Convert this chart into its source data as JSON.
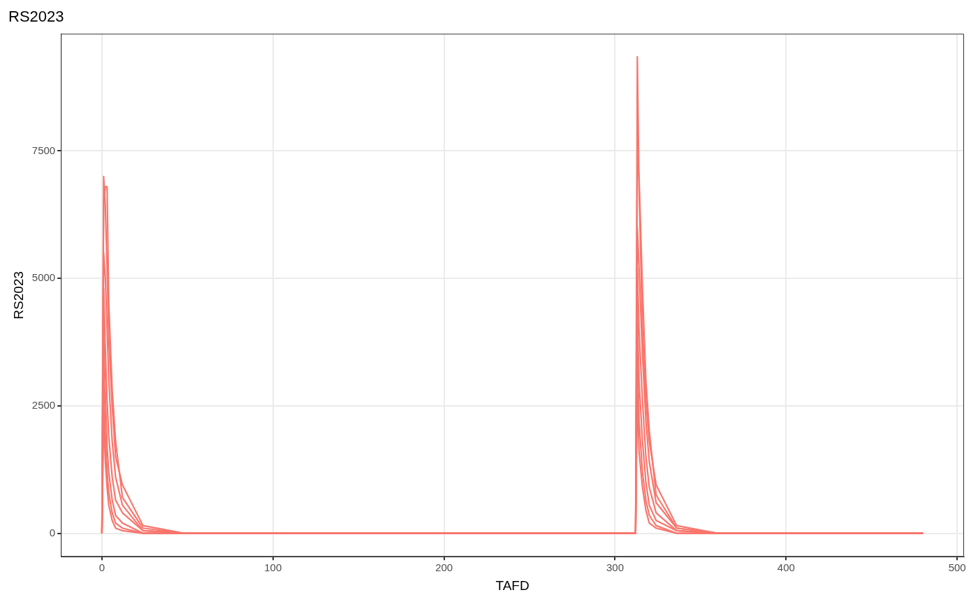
{
  "chart_data": {
    "type": "line",
    "title": "RS2023",
    "xlabel": "TAFD",
    "ylabel": "RS2023",
    "x": [
      0,
      1,
      2,
      3,
      4,
      6,
      8,
      12,
      24,
      48,
      72,
      312,
      313,
      314,
      316,
      318,
      320,
      324,
      336,
      360,
      384,
      480
    ],
    "series": [
      {
        "color": "#f8766d",
        "values": [
          0,
          7000,
          6400,
          5200,
          3800,
          2500,
          1500,
          950,
          150,
          0,
          0,
          0,
          9350,
          6800,
          4000,
          2600,
          1800,
          950,
          150,
          0,
          0,
          0
        ]
      },
      {
        "color": "#f8766d",
        "values": [
          0,
          6500,
          6800,
          6800,
          4500,
          2800,
          1800,
          700,
          100,
          0,
          0,
          0,
          7400,
          7000,
          4800,
          3000,
          2000,
          750,
          100,
          0,
          0,
          0
        ]
      },
      {
        "color": "#f8766d",
        "values": [
          0,
          5500,
          5000,
          4000,
          3000,
          1800,
          1100,
          550,
          50,
          0,
          0,
          0,
          6000,
          5200,
          3500,
          2200,
          1400,
          600,
          100,
          0,
          0,
          0
        ]
      },
      {
        "color": "#f8766d",
        "values": [
          0,
          4800,
          3600,
          2600,
          1900,
          1100,
          650,
          400,
          50,
          0,
          0,
          0,
          5200,
          4000,
          2600,
          1500,
          900,
          400,
          50,
          0,
          0,
          0
        ]
      },
      {
        "color": "#f8766d",
        "values": [
          0,
          3900,
          2700,
          1700,
          1200,
          650,
          350,
          200,
          0,
          0,
          0,
          0,
          4300,
          3000,
          1800,
          1000,
          550,
          250,
          50,
          0,
          0,
          0
        ]
      },
      {
        "color": "#f8766d",
        "values": [
          0,
          3000,
          1900,
          1200,
          800,
          400,
          200,
          100,
          0,
          0,
          0,
          0,
          3500,
          2200,
          1200,
          650,
          350,
          150,
          0,
          0,
          0,
          0
        ]
      },
      {
        "color": "#f8766d",
        "values": [
          0,
          2300,
          1400,
          900,
          550,
          250,
          100,
          50,
          0,
          0,
          0,
          0,
          2800,
          1600,
          900,
          450,
          200,
          100,
          0,
          0,
          0,
          0
        ]
      }
    ],
    "xlim": [
      -24,
      504
    ],
    "ylim": [
      -460,
      9800
    ],
    "xticks": [
      0,
      100,
      200,
      300,
      400,
      500
    ],
    "yticks": [
      0,
      2500,
      5000,
      7500
    ],
    "grid": true,
    "legend": false,
    "marker": "none",
    "line_style": "solid"
  }
}
